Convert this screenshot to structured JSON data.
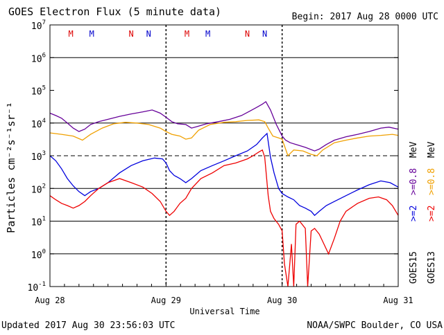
{
  "chart_data": {
    "type": "line",
    "title": "GOES Electron Flux (5 minute data)",
    "begin_label": "Begin: 2017 Aug 28 0000 UTC",
    "xlabel": "Universal Time",
    "ylabel": "Particles cm⁻²s⁻¹sr⁻¹",
    "y_scale": "log",
    "ylim": [
      0.1,
      10000000
    ],
    "xlim_days": [
      0,
      3
    ],
    "x_ticks": [
      {
        "day": 0,
        "label": "Aug 28"
      },
      {
        "day": 1,
        "label": "Aug 29"
      },
      {
        "day": 2,
        "label": "Aug 30"
      },
      {
        "day": 3,
        "label": "Aug 31"
      }
    ],
    "y_ticks": [
      {
        "value": 10000000,
        "mant": "10",
        "exp": "7"
      },
      {
        "value": 1000000,
        "mant": "10",
        "exp": "6"
      },
      {
        "value": 100000,
        "mant": "10",
        "exp": "5"
      },
      {
        "value": 10000,
        "mant": "10",
        "exp": "4"
      },
      {
        "value": 1000,
        "mant": "10",
        "exp": "3"
      },
      {
        "value": 100,
        "mant": "10",
        "exp": "2"
      },
      {
        "value": 10,
        "mant": "10",
        "exp": "1"
      },
      {
        "value": 1,
        "mant": "10",
        "exp": "0"
      },
      {
        "value": 0.1,
        "mant": "10",
        "exp": "-1"
      }
    ],
    "grid_lines_solid": [
      10000,
      100,
      10,
      1,
      1000000
    ],
    "grid_lines_dashed": [
      1000
    ],
    "day_lines_dashed": [
      1,
      2
    ],
    "markers": [
      {
        "day": 0.18,
        "label": "M",
        "color": "#dd0000"
      },
      {
        "day": 0.36,
        "label": "M",
        "color": "#0000cc"
      },
      {
        "day": 0.7,
        "label": "N",
        "color": "#dd0000"
      },
      {
        "day": 0.85,
        "label": "N",
        "color": "#0000cc"
      },
      {
        "day": 1.18,
        "label": "M",
        "color": "#dd0000"
      },
      {
        "day": 1.36,
        "label": "M",
        "color": "#0000cc"
      },
      {
        "day": 1.7,
        "label": "N",
        "color": "#dd0000"
      },
      {
        "day": 1.85,
        "label": "N",
        "color": "#0000cc"
      }
    ],
    "series": [
      {
        "name": "GOES15 >=0.8 MeV",
        "color": "#660099",
        "points": [
          [
            0,
            20000
          ],
          [
            0.05,
            17000
          ],
          [
            0.1,
            14000
          ],
          [
            0.15,
            10000
          ],
          [
            0.2,
            7000
          ],
          [
            0.25,
            5500
          ],
          [
            0.3,
            6500
          ],
          [
            0.35,
            9000
          ],
          [
            0.42,
            11000
          ],
          [
            0.5,
            13000
          ],
          [
            0.6,
            16000
          ],
          [
            0.7,
            19000
          ],
          [
            0.8,
            22000
          ],
          [
            0.88,
            25000
          ],
          [
            0.95,
            20000
          ],
          [
            1.0,
            15000
          ],
          [
            1.05,
            11000
          ],
          [
            1.1,
            9500
          ],
          [
            1.17,
            9000
          ],
          [
            1.22,
            7000
          ],
          [
            1.28,
            8000
          ],
          [
            1.35,
            9500
          ],
          [
            1.45,
            11000
          ],
          [
            1.55,
            13000
          ],
          [
            1.65,
            17000
          ],
          [
            1.72,
            23000
          ],
          [
            1.78,
            30000
          ],
          [
            1.83,
            38000
          ],
          [
            1.86,
            45000
          ],
          [
            1.9,
            25000
          ],
          [
            1.95,
            9000
          ],
          [
            2.0,
            4000
          ],
          [
            2.03,
            3000
          ],
          [
            2.07,
            2500
          ],
          [
            2.12,
            2200
          ],
          [
            2.2,
            1800
          ],
          [
            2.28,
            1400
          ],
          [
            2.32,
            1600
          ],
          [
            2.38,
            2200
          ],
          [
            2.45,
            3000
          ],
          [
            2.55,
            3800
          ],
          [
            2.65,
            4500
          ],
          [
            2.75,
            5500
          ],
          [
            2.85,
            7000
          ],
          [
            2.92,
            7500
          ],
          [
            3.0,
            6500
          ]
        ]
      },
      {
        "name": "GOES13 >=0.8 MeV",
        "color": "#f0a000",
        "points": [
          [
            0,
            5000
          ],
          [
            0.1,
            4500
          ],
          [
            0.2,
            4000
          ],
          [
            0.28,
            3000
          ],
          [
            0.35,
            4500
          ],
          [
            0.45,
            7000
          ],
          [
            0.55,
            9500
          ],
          [
            0.65,
            10500
          ],
          [
            0.75,
            10000
          ],
          [
            0.85,
            9000
          ],
          [
            0.95,
            7000
          ],
          [
            1.0,
            5500
          ],
          [
            1.05,
            4500
          ],
          [
            1.12,
            4000
          ],
          [
            1.17,
            3200
          ],
          [
            1.22,
            3500
          ],
          [
            1.28,
            6000
          ],
          [
            1.38,
            9000
          ],
          [
            1.5,
            10500
          ],
          [
            1.6,
            11000
          ],
          [
            1.7,
            12000
          ],
          [
            1.8,
            12500
          ],
          [
            1.85,
            11000
          ],
          [
            1.88,
            7000
          ],
          [
            1.92,
            4000
          ],
          [
            1.97,
            3500
          ],
          [
            2.0,
            3200
          ],
          [
            2.05,
            1000
          ],
          [
            2.1,
            1500
          ],
          [
            2.18,
            1400
          ],
          [
            2.25,
            1100
          ],
          [
            2.3,
            1000
          ],
          [
            2.35,
            1500
          ],
          [
            2.45,
            2500
          ],
          [
            2.55,
            3000
          ],
          [
            2.65,
            3500
          ],
          [
            2.75,
            4000
          ],
          [
            2.85,
            4200
          ],
          [
            2.95,
            4500
          ],
          [
            3.0,
            4200
          ]
        ]
      },
      {
        "name": "GOES15 >=2 MeV",
        "color": "#0000dd",
        "points": [
          [
            0,
            1000
          ],
          [
            0.05,
            700
          ],
          [
            0.1,
            400
          ],
          [
            0.15,
            200
          ],
          [
            0.2,
            120
          ],
          [
            0.25,
            80
          ],
          [
            0.3,
            60
          ],
          [
            0.35,
            80
          ],
          [
            0.42,
            100
          ],
          [
            0.5,
            150
          ],
          [
            0.6,
            300
          ],
          [
            0.7,
            500
          ],
          [
            0.8,
            700
          ],
          [
            0.9,
            850
          ],
          [
            0.97,
            800
          ],
          [
            1.0,
            600
          ],
          [
            1.03,
            350
          ],
          [
            1.07,
            250
          ],
          [
            1.12,
            200
          ],
          [
            1.17,
            150
          ],
          [
            1.22,
            200
          ],
          [
            1.3,
            350
          ],
          [
            1.4,
            500
          ],
          [
            1.5,
            700
          ],
          [
            1.6,
            1000
          ],
          [
            1.7,
            1400
          ],
          [
            1.78,
            2200
          ],
          [
            1.83,
            3500
          ],
          [
            1.87,
            4800
          ],
          [
            1.9,
            900
          ],
          [
            1.93,
            300
          ],
          [
            1.97,
            100
          ],
          [
            2.0,
            70
          ],
          [
            2.05,
            55
          ],
          [
            2.1,
            45
          ],
          [
            2.15,
            30
          ],
          [
            2.2,
            25
          ],
          [
            2.25,
            20
          ],
          [
            2.28,
            15
          ],
          [
            2.32,
            20
          ],
          [
            2.38,
            30
          ],
          [
            2.45,
            40
          ],
          [
            2.55,
            60
          ],
          [
            2.65,
            90
          ],
          [
            2.75,
            130
          ],
          [
            2.85,
            170
          ],
          [
            2.93,
            150
          ],
          [
            3.0,
            110
          ]
        ]
      },
      {
        "name": "GOES13 >=2 MeV",
        "color": "#ee0000",
        "points": [
          [
            0,
            60
          ],
          [
            0.05,
            45
          ],
          [
            0.1,
            35
          ],
          [
            0.15,
            30
          ],
          [
            0.2,
            25
          ],
          [
            0.25,
            30
          ],
          [
            0.3,
            40
          ],
          [
            0.35,
            60
          ],
          [
            0.42,
            100
          ],
          [
            0.5,
            150
          ],
          [
            0.6,
            200
          ],
          [
            0.7,
            150
          ],
          [
            0.8,
            110
          ],
          [
            0.88,
            70
          ],
          [
            0.95,
            40
          ],
          [
            1.0,
            20
          ],
          [
            1.03,
            15
          ],
          [
            1.07,
            20
          ],
          [
            1.12,
            35
          ],
          [
            1.17,
            50
          ],
          [
            1.22,
            100
          ],
          [
            1.3,
            200
          ],
          [
            1.4,
            300
          ],
          [
            1.5,
            500
          ],
          [
            1.6,
            600
          ],
          [
            1.7,
            800
          ],
          [
            1.75,
            1000
          ],
          [
            1.8,
            1300
          ],
          [
            1.83,
            1500
          ],
          [
            1.85,
            900
          ],
          [
            1.88,
            60
          ],
          [
            1.9,
            20
          ],
          [
            1.93,
            12
          ],
          [
            1.97,
            8
          ],
          [
            2.0,
            5
          ],
          [
            2.02,
            0.5
          ],
          [
            2.05,
            0.1
          ],
          [
            2.08,
            2
          ],
          [
            2.1,
            0.1
          ],
          [
            2.12,
            8
          ],
          [
            2.15,
            10
          ],
          [
            2.2,
            6
          ],
          [
            2.22,
            0.1
          ],
          [
            2.25,
            5
          ],
          [
            2.28,
            6
          ],
          [
            2.32,
            4
          ],
          [
            2.36,
            2
          ],
          [
            2.4,
            1
          ],
          [
            2.45,
            3
          ],
          [
            2.5,
            10
          ],
          [
            2.55,
            20
          ],
          [
            2.65,
            35
          ],
          [
            2.75,
            50
          ],
          [
            2.83,
            55
          ],
          [
            2.9,
            45
          ],
          [
            2.95,
            30
          ],
          [
            3.0,
            15
          ]
        ]
      }
    ],
    "legend": {
      "rows": [
        {
          "sat": "GOES15",
          "items": [
            {
              "text": ">=2",
              "color": "#0000dd"
            },
            {
              "text": ">=0.8",
              "color": "#660099"
            },
            {
              "text": "MeV",
              "color": "#000000"
            }
          ]
        },
        {
          "sat": "GOES13",
          "items": [
            {
              "text": ">=2",
              "color": "#ee0000"
            },
            {
              "text": ">=0.8",
              "color": "#f0a000"
            },
            {
              "text": "MeV",
              "color": "#000000"
            }
          ]
        }
      ]
    }
  },
  "footer": {
    "updated": "Updated 2017 Aug 30 23:56:03 UTC",
    "credit": "NOAA/SWPC Boulder, CO USA"
  }
}
